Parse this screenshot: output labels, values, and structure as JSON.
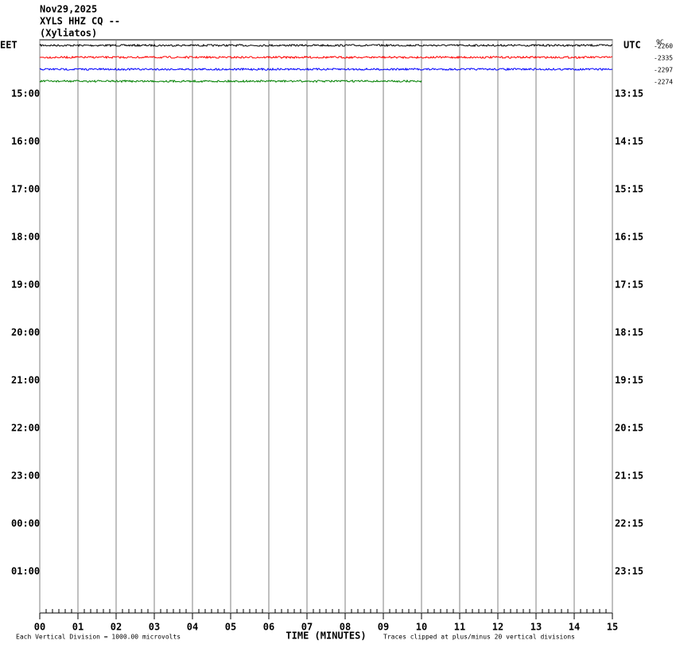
{
  "chart_data": {
    "type": "helicorder",
    "title": "Nov29,2025",
    "subtitle": "XYLS HHZ CQ --",
    "station": "(Xyliatos)",
    "left_zone": "EET",
    "right_zone": "UTC",
    "trace_header": "9C",
    "left_labels": [
      "15:00",
      "16:00",
      "17:00",
      "18:00",
      "19:00",
      "20:00",
      "21:00",
      "22:00",
      "23:00",
      "00:00",
      "01:00"
    ],
    "right_labels": [
      "13:15",
      "14:15",
      "15:15",
      "16:15",
      "17:15",
      "18:15",
      "19:15",
      "20:15",
      "21:15",
      "22:15",
      "23:15"
    ],
    "traces": [
      {
        "label": "-2260",
        "color": "#000000",
        "end": 15
      },
      {
        "label": "-2335",
        "color": "#ff0000",
        "end": 15
      },
      {
        "label": "-2297",
        "color": "#0000ff",
        "end": 15
      },
      {
        "label": "-2274",
        "color": "#008000",
        "end": 10
      }
    ],
    "xlabel": "TIME (MINUTES)",
    "scale_note": "Each Vertical Division = 1000.00 microvolts",
    "clip_note": "Traces clipped at plus/minus 20 vertical divisions",
    "xlim": [
      0,
      15
    ],
    "xticks": [
      {
        "value": 0,
        "label": "00"
      },
      {
        "value": 1,
        "label": "01"
      },
      {
        "value": 2,
        "label": "02"
      },
      {
        "value": 3,
        "label": "03"
      },
      {
        "value": 4,
        "label": "04"
      },
      {
        "value": 5,
        "label": "05"
      },
      {
        "value": 6,
        "label": "06"
      },
      {
        "value": 7,
        "label": "07"
      },
      {
        "value": 8,
        "label": "08"
      },
      {
        "value": 9,
        "label": "09"
      },
      10,
      11,
      12,
      13,
      14,
      15
    ],
    "grid": true
  }
}
